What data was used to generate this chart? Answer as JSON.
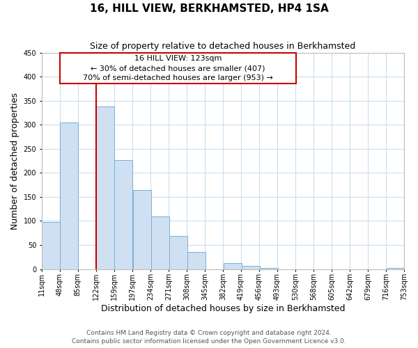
{
  "title": "16, HILL VIEW, BERKHAMSTED, HP4 1SA",
  "subtitle": "Size of property relative to detached houses in Berkhamsted",
  "xlabel": "Distribution of detached houses by size in Berkhamsted",
  "ylabel": "Number of detached properties",
  "bin_starts": [
    11,
    48,
    85,
    122,
    159,
    197,
    234,
    271,
    308,
    345,
    382,
    419,
    456,
    493,
    530,
    568,
    605,
    642,
    679,
    716
  ],
  "bar_heights": [
    97,
    304,
    0,
    338,
    227,
    164,
    109,
    69,
    35,
    0,
    13,
    7,
    2,
    0,
    0,
    0,
    0,
    0,
    0,
    2
  ],
  "bin_width": 37,
  "bar_color": "#cfe0f2",
  "bar_edge_color": "#7bafd4",
  "tick_labels": [
    "11sqm",
    "48sqm",
    "85sqm",
    "122sqm",
    "159sqm",
    "197sqm",
    "234sqm",
    "271sqm",
    "308sqm",
    "345sqm",
    "382sqm",
    "419sqm",
    "456sqm",
    "493sqm",
    "530sqm",
    "568sqm",
    "605sqm",
    "642sqm",
    "679sqm",
    "716sqm",
    "753sqm"
  ],
  "ylim": [
    0,
    450
  ],
  "yticks": [
    0,
    50,
    100,
    150,
    200,
    250,
    300,
    350,
    400,
    450
  ],
  "vline_x": 122,
  "vline_color": "#cc0000",
  "annotation_line1": "16 HILL VIEW: 123sqm",
  "annotation_line2": "← 30% of detached houses are smaller (407)",
  "annotation_line3": "70% of semi-detached houses are larger (953) →",
  "box_edge_color": "#cc0000",
  "footer_line1": "Contains HM Land Registry data © Crown copyright and database right 2024.",
  "footer_line2": "Contains public sector information licensed under the Open Government Licence v3.0.",
  "background_color": "#ffffff",
  "grid_color": "#c8dff0",
  "title_fontsize": 11,
  "subtitle_fontsize": 9,
  "axis_label_fontsize": 9,
  "tick_fontsize": 7,
  "annotation_fontsize": 8,
  "footer_fontsize": 6.5
}
